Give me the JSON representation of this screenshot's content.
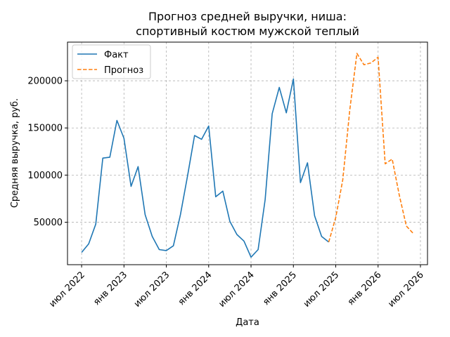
{
  "chart_data": {
    "type": "line",
    "title_line1": "Прогноз средней выручки, ниша:",
    "title_line2": "спортивный костюм мужской теплый",
    "xlabel": "Дата",
    "ylabel": "Средняя выручка, руб.",
    "grid": true,
    "legend_position": "top-left",
    "x_ticks": [
      {
        "date": "2022-07",
        "label": "июл 2022"
      },
      {
        "date": "2023-01",
        "label": "янв 2023"
      },
      {
        "date": "2023-07",
        "label": "июл 2023"
      },
      {
        "date": "2024-01",
        "label": "янв 2024"
      },
      {
        "date": "2024-07",
        "label": "июл 2024"
      },
      {
        "date": "2025-01",
        "label": "янв 2025"
      },
      {
        "date": "2025-07",
        "label": "июл 2025"
      },
      {
        "date": "2026-01",
        "label": "янв 2026"
      },
      {
        "date": "2026-07",
        "label": "июл 2026"
      }
    ],
    "y_ticks": [
      50000,
      100000,
      150000,
      200000
    ],
    "xlim": [
      "2022-05",
      "2026-08"
    ],
    "ylim": [
      5000,
      241000
    ],
    "series": [
      {
        "name": "Факт",
        "color": "#1f77b4",
        "style": "solid",
        "x": [
          "2022-07",
          "2022-08",
          "2022-09",
          "2022-10",
          "2022-11",
          "2022-12",
          "2023-01",
          "2023-02",
          "2023-03",
          "2023-04",
          "2023-05",
          "2023-06",
          "2023-07",
          "2023-08",
          "2023-09",
          "2023-10",
          "2023-11",
          "2023-12",
          "2024-01",
          "2024-02",
          "2024-03",
          "2024-04",
          "2024-05",
          "2024-06",
          "2024-07",
          "2024-08",
          "2024-09",
          "2024-10",
          "2024-11",
          "2024-12",
          "2025-01",
          "2025-02",
          "2025-03",
          "2025-04",
          "2025-05",
          "2025-06"
        ],
        "y": [
          18000,
          27000,
          48000,
          118000,
          119000,
          158000,
          139000,
          88000,
          109000,
          58000,
          35000,
          21000,
          20000,
          25000,
          58000,
          99000,
          142000,
          138000,
          152000,
          77000,
          83000,
          51000,
          37000,
          30000,
          13000,
          21000,
          74000,
          165000,
          193000,
          166000,
          202000,
          92000,
          113000,
          57000,
          35000,
          29000
        ]
      },
      {
        "name": "Прогноз",
        "color": "#ff7f0e",
        "style": "dashed",
        "x": [
          "2025-06",
          "2025-07",
          "2025-08",
          "2025-09",
          "2025-10",
          "2025-11",
          "2025-12",
          "2026-01",
          "2026-02",
          "2026-03",
          "2026-04",
          "2026-05",
          "2026-06"
        ],
        "y": [
          29000,
          55000,
          95000,
          170000,
          229000,
          217000,
          219000,
          225000,
          112000,
          117000,
          79000,
          46000,
          38000
        ]
      }
    ]
  }
}
